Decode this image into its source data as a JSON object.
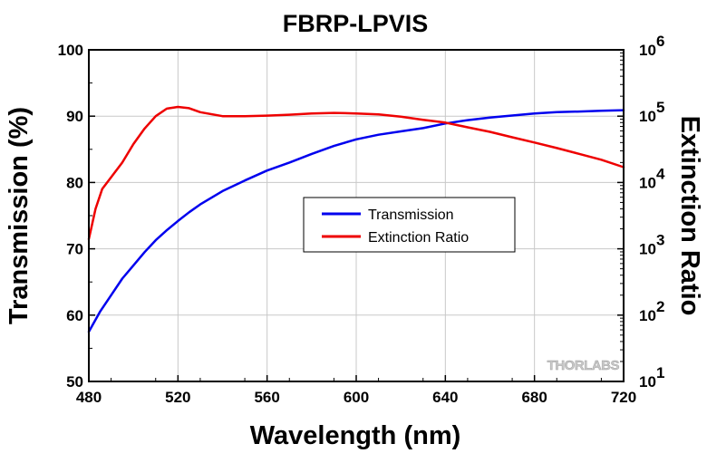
{
  "chart_data": {
    "type": "line",
    "title": "FBRP-LPVIS",
    "xlabel": "Wavelength (nm)",
    "ylabel": "Transmission (%)",
    "y2label": "Extinction Ratio",
    "xlim": [
      480,
      720
    ],
    "ylim": [
      50,
      100
    ],
    "y2lim": [
      10,
      1000000
    ],
    "y2scale": "log",
    "xticks": [
      "480",
      "520",
      "560",
      "600",
      "640",
      "680",
      "720"
    ],
    "yticks": [
      "50",
      "60",
      "70",
      "80",
      "90",
      "100"
    ],
    "y2ticks": [
      {
        "base": "10",
        "exp": "1",
        "value": 10
      },
      {
        "base": "10",
        "exp": "2",
        "value": 100
      },
      {
        "base": "10",
        "exp": "3",
        "value": 1000
      },
      {
        "base": "10",
        "exp": "4",
        "value": 10000
      },
      {
        "base": "10",
        "exp": "5",
        "value": 100000
      },
      {
        "base": "10",
        "exp": "6",
        "value": 1000000
      }
    ],
    "grid": true,
    "legend_position": "center",
    "watermark": "THORLABS",
    "series": [
      {
        "name": "Transmission",
        "axis": "left",
        "color": "#0000ee",
        "x": [
          480,
          485,
          490,
          495,
          500,
          505,
          510,
          515,
          520,
          525,
          530,
          540,
          550,
          560,
          570,
          580,
          590,
          600,
          610,
          620,
          630,
          640,
          650,
          660,
          670,
          680,
          690,
          700,
          710,
          720
        ],
        "y": [
          57.5,
          60.5,
          63.0,
          65.5,
          67.5,
          69.5,
          71.3,
          72.8,
          74.2,
          75.5,
          76.7,
          78.7,
          80.3,
          81.8,
          83.0,
          84.3,
          85.5,
          86.5,
          87.2,
          87.7,
          88.2,
          88.9,
          89.4,
          89.8,
          90.1,
          90.4,
          90.6,
          90.7,
          90.8,
          90.9
        ]
      },
      {
        "name": "Extinction Ratio",
        "axis": "right",
        "color": "#ee0000",
        "x": [
          480,
          483,
          486,
          490,
          495,
          500,
          505,
          510,
          515,
          520,
          525,
          530,
          540,
          550,
          560,
          570,
          580,
          590,
          600,
          610,
          620,
          630,
          640,
          650,
          660,
          670,
          680,
          690,
          700,
          710,
          720
        ],
        "y": [
          1400,
          4000,
          8000,
          12000,
          20000,
          38000,
          65000,
          100000,
          130000,
          138000,
          132000,
          115000,
          100000,
          100000,
          102000,
          105000,
          110000,
          112000,
          110000,
          106000,
          98000,
          88000,
          80000,
          68000,
          58000,
          48000,
          40000,
          33000,
          27000,
          22000,
          17000
        ]
      }
    ]
  }
}
